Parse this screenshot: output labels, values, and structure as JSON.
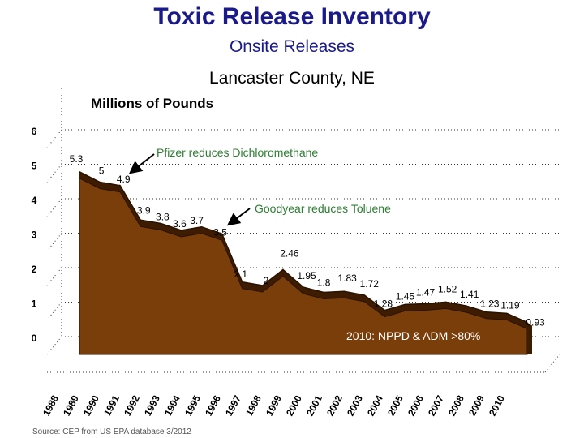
{
  "title": "Toxic Release Inventory",
  "subtitle": "Onsite Releases",
  "location": "Lancaster County, NE",
  "source": "Source: CEP from US EPA database 3/2012",
  "chart_data": {
    "type": "area",
    "ylabel": "Millions of Pounds",
    "ylim": [
      0,
      6
    ],
    "yticks": [
      0,
      1,
      2,
      3,
      4,
      5,
      6
    ],
    "grid": true,
    "categories": [
      "1988",
      "1989",
      "1990",
      "1991",
      "1992",
      "1993",
      "1994",
      "1995",
      "1996",
      "1997",
      "1998",
      "1999",
      "2000",
      "2001",
      "2002",
      "2003",
      "2004",
      "2005",
      "2006",
      "2007",
      "2008",
      "2009",
      "2010"
    ],
    "values": [
      5.3,
      5,
      4.9,
      3.9,
      3.8,
      3.6,
      3.7,
      3.5,
      2.1,
      2,
      2.46,
      1.95,
      1.8,
      1.83,
      1.72,
      1.28,
      1.45,
      1.47,
      1.52,
      1.41,
      1.23,
      1.19,
      0.93
    ],
    "value_labels": [
      "5.3",
      "5",
      "4.9",
      "3.9",
      "3.8",
      "3.6",
      "3.7",
      "3.5",
      "2.1",
      "2",
      "2.46",
      "1.95",
      "1.8",
      "1.83",
      "1.72",
      "1.28",
      "1.45",
      "1.47",
      "1.52",
      "1.41",
      "1.23",
      "1.19",
      "0.93"
    ],
    "annotations": [
      {
        "text": "Pfizer reduces Dichloromethane",
        "points_to": "1990"
      },
      {
        "text": "Goodyear reduces Toluene",
        "points_to": "1995"
      },
      {
        "text": "2010: NPPD & ADM >80%",
        "points_to": ""
      }
    ],
    "colors": {
      "fill": "#7a3e0a",
      "edge": "#3d1c02",
      "annotation_green": "#2e7d32"
    }
  }
}
